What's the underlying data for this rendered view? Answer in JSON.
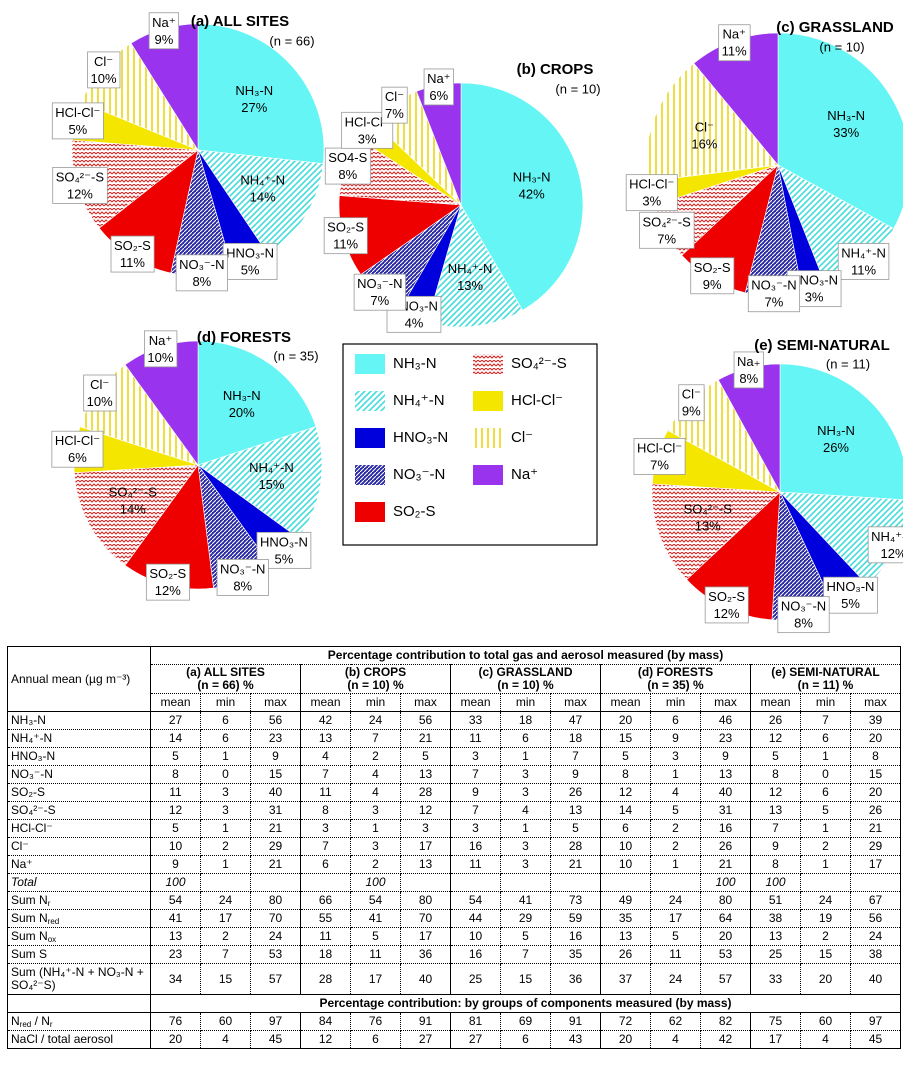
{
  "chart_data": [
    {
      "type": "pie",
      "title": "(a) ALL SITES",
      "subtitle": "(n = 66)",
      "categories": [
        "NH₃-N",
        "NH₄⁺-N",
        "HNO₃-N",
        "NO₃⁻-N",
        "SO₂-S",
        "SO₄²⁻-S",
        "HCl-Cl⁻",
        "Cl⁻",
        "Na⁺"
      ],
      "values": [
        27,
        14,
        5,
        8,
        11,
        12,
        5,
        10,
        9
      ],
      "value_labels": [
        "27%",
        "14%",
        "5%",
        "8%",
        "11%",
        "12%",
        "5%",
        "10%",
        "9%"
      ]
    },
    {
      "type": "pie",
      "title": "(b) CROPS",
      "subtitle": "(n = 10)",
      "categories": [
        "NH₃-N",
        "NH₄⁺-N",
        "HNO₃-N",
        "NO₃⁻-N",
        "SO₂-S",
        "SO4-S",
        "HCl-Cl⁻",
        "Cl⁻",
        "Na⁺"
      ],
      "values": [
        42,
        13,
        4,
        7,
        11,
        8,
        3,
        7,
        6
      ],
      "value_labels": [
        "42%",
        "13%",
        "4%",
        "7%",
        "11%",
        "8%",
        "3%",
        "7%",
        "6%"
      ]
    },
    {
      "type": "pie",
      "title": "(c) GRASSLAND",
      "subtitle": "(n = 10)",
      "categories": [
        "NH₃-N",
        "NH₄⁺-N",
        "HNO₃-N",
        "NO₃⁻-N",
        "SO₂-S",
        "SO₄²⁻-S",
        "HCl-Cl⁻",
        "Cl⁻",
        "Na⁺"
      ],
      "values": [
        33,
        11,
        3,
        7,
        9,
        7,
        3,
        16,
        11
      ],
      "value_labels": [
        "33%",
        "11%",
        "3%",
        "7%",
        "9%",
        "7%",
        "3%",
        "16%",
        "11%"
      ]
    },
    {
      "type": "pie",
      "title": "(d) FORESTS",
      "subtitle": "(n = 35)",
      "categories": [
        "NH₃-N",
        "NH₄⁺-N",
        "HNO₃-N",
        "NO₃⁻-N",
        "SO₂-S",
        "SO₄²⁻-S",
        "HCl-Cl⁻",
        "Cl⁻",
        "Na⁺"
      ],
      "values": [
        20,
        15,
        5,
        8,
        12,
        14,
        6,
        10,
        10
      ],
      "value_labels": [
        "20%",
        "15%",
        "5%",
        "8%",
        "12%",
        "14%",
        "6%",
        "10%",
        "10%"
      ]
    },
    {
      "type": "pie",
      "title": "(e) SEMI-NATURAL",
      "subtitle": "(n = 11)",
      "categories": [
        "NH₃-N",
        "NH₄⁺-N",
        "HNO₃-N",
        "NO₃⁻-N",
        "SO₂-S",
        "SO₄²⁻-S",
        "HCl-Cl⁻",
        "Cl⁻",
        "Na₊"
      ],
      "values": [
        26,
        12,
        5,
        8,
        12,
        13,
        7,
        9,
        8
      ],
      "value_labels": [
        "26%",
        "12%",
        "5%",
        "8%",
        "12%",
        "13%",
        "7%",
        "9%",
        "8%"
      ]
    }
  ],
  "legend": {
    "items": [
      {
        "name": "NH₃-N",
        "color": "#66f5f5",
        "fill": "solid"
      },
      {
        "name": "NH₄⁺-N",
        "color": "#44dddd",
        "fill": "diagonal"
      },
      {
        "name": "HNO₃-N",
        "color": "#0000dd",
        "fill": "solid"
      },
      {
        "name": "NO₃⁻-N",
        "color": "#2a2aa8",
        "fill": "dense-diagonal"
      },
      {
        "name": "SO₂-S",
        "color": "#ee0000",
        "fill": "solid"
      },
      {
        "name": "SO₄²⁻-S",
        "color": "#dd2222",
        "fill": "zigzag"
      },
      {
        "name": "HCl-Cl⁻",
        "color": "#f5e600",
        "fill": "solid"
      },
      {
        "name": "Cl⁻",
        "color": "#e8d400",
        "fill": "vertical"
      },
      {
        "name": "Na⁺",
        "color": "#9933ee",
        "fill": "solid"
      }
    ]
  },
  "table": {
    "row_header": "Annual mean (µg m⁻³)",
    "title": "Percentage contribution to total gas and aerosol measured (by mass)",
    "groups": [
      {
        "title": "(a) ALL SITES",
        "n": "(n = 66) %"
      },
      {
        "title": "(b) CROPS",
        "n": "(n = 10) %"
      },
      {
        "title": "(c) GRASSLAND",
        "n": "(n = 10) %"
      },
      {
        "title": "(d) FORESTS",
        "n": "(n = 35) %"
      },
      {
        "title": "(e) SEMI-NATURAL",
        "n": "(n = 11) %"
      }
    ],
    "stats": [
      "mean",
      "min",
      "max"
    ],
    "rows": [
      {
        "label": [
          "NH₃-N"
        ],
        "cells": [
          27,
          6,
          56,
          42,
          24,
          56,
          33,
          18,
          47,
          20,
          6,
          46,
          26,
          7,
          39
        ]
      },
      {
        "label": [
          "NH₄⁺-N"
        ],
        "cells": [
          14,
          6,
          23,
          13,
          7,
          21,
          11,
          6,
          18,
          15,
          9,
          23,
          12,
          6,
          20
        ]
      },
      {
        "label": [
          "HNO₃-N"
        ],
        "cells": [
          5,
          1,
          9,
          4,
          2,
          5,
          3,
          1,
          7,
          5,
          3,
          9,
          5,
          1,
          8
        ]
      },
      {
        "label": [
          "NO₃⁻-N"
        ],
        "cells": [
          8,
          0,
          15,
          7,
          4,
          13,
          7,
          3,
          9,
          8,
          1,
          13,
          8,
          0,
          15
        ]
      },
      {
        "label": [
          "SO₂-S"
        ],
        "cells": [
          11,
          3,
          40,
          11,
          4,
          28,
          9,
          3,
          26,
          12,
          4,
          40,
          12,
          6,
          20
        ]
      },
      {
        "label": [
          "SO₄²⁻-S"
        ],
        "cells": [
          12,
          3,
          31,
          8,
          3,
          12,
          7,
          4,
          13,
          14,
          5,
          31,
          13,
          5,
          26
        ]
      },
      {
        "label": [
          "HCl-Cl⁻"
        ],
        "cells": [
          5,
          1,
          21,
          3,
          1,
          3,
          3,
          1,
          5,
          6,
          2,
          16,
          7,
          1,
          21
        ]
      },
      {
        "label": [
          "Cl⁻"
        ],
        "cells": [
          10,
          2,
          29,
          7,
          3,
          17,
          16,
          3,
          28,
          10,
          2,
          26,
          9,
          2,
          29
        ]
      },
      {
        "label": [
          "Na⁺"
        ],
        "cells": [
          9,
          1,
          21,
          6,
          2,
          13,
          11,
          3,
          21,
          10,
          1,
          21,
          8,
          1,
          17
        ]
      },
      {
        "label": [
          "Total"
        ],
        "italic": true,
        "cells": [
          100,
          null,
          null,
          null,
          100,
          null,
          null,
          null,
          null,
          null,
          null,
          100,
          100,
          null,
          null
        ]
      },
      {
        "label": [
          "Sum N",
          "r"
        ],
        "cells": [
          54,
          24,
          80,
          66,
          54,
          80,
          54,
          41,
          73,
          49,
          24,
          80,
          51,
          24,
          67
        ]
      },
      {
        "label": [
          "Sum N",
          "red"
        ],
        "cells": [
          41,
          17,
          70,
          55,
          41,
          70,
          44,
          29,
          59,
          35,
          17,
          64,
          38,
          19,
          56
        ]
      },
      {
        "label": [
          "Sum N",
          "ox"
        ],
        "cells": [
          13,
          2,
          24,
          11,
          5,
          17,
          10,
          5,
          16,
          13,
          5,
          20,
          13,
          2,
          24
        ]
      },
      {
        "label": [
          "Sum S"
        ],
        "cells": [
          23,
          7,
          53,
          18,
          11,
          36,
          16,
          7,
          35,
          26,
          11,
          53,
          25,
          15,
          38
        ]
      },
      {
        "label": [
          "Sum (NH₄⁺-N + NO₃-N + SO₄²⁻S)"
        ],
        "cells": [
          34,
          15,
          57,
          28,
          17,
          40,
          25,
          15,
          36,
          37,
          24,
          57,
          33,
          20,
          40
        ]
      }
    ],
    "section2": "Percentage contribution: by groups of components measured (by mass)",
    "rows2": [
      {
        "label": [
          "N",
          "red",
          " / N",
          "r"
        ],
        "cells": [
          76,
          60,
          97,
          84,
          76,
          91,
          81,
          69,
          91,
          72,
          62,
          82,
          75,
          60,
          97
        ]
      },
      {
        "label": [
          "NaCl / total aerosol"
        ],
        "cells": [
          20,
          4,
          45,
          12,
          6,
          27,
          27,
          6,
          43,
          20,
          4,
          42,
          17,
          4,
          45
        ]
      }
    ]
  }
}
